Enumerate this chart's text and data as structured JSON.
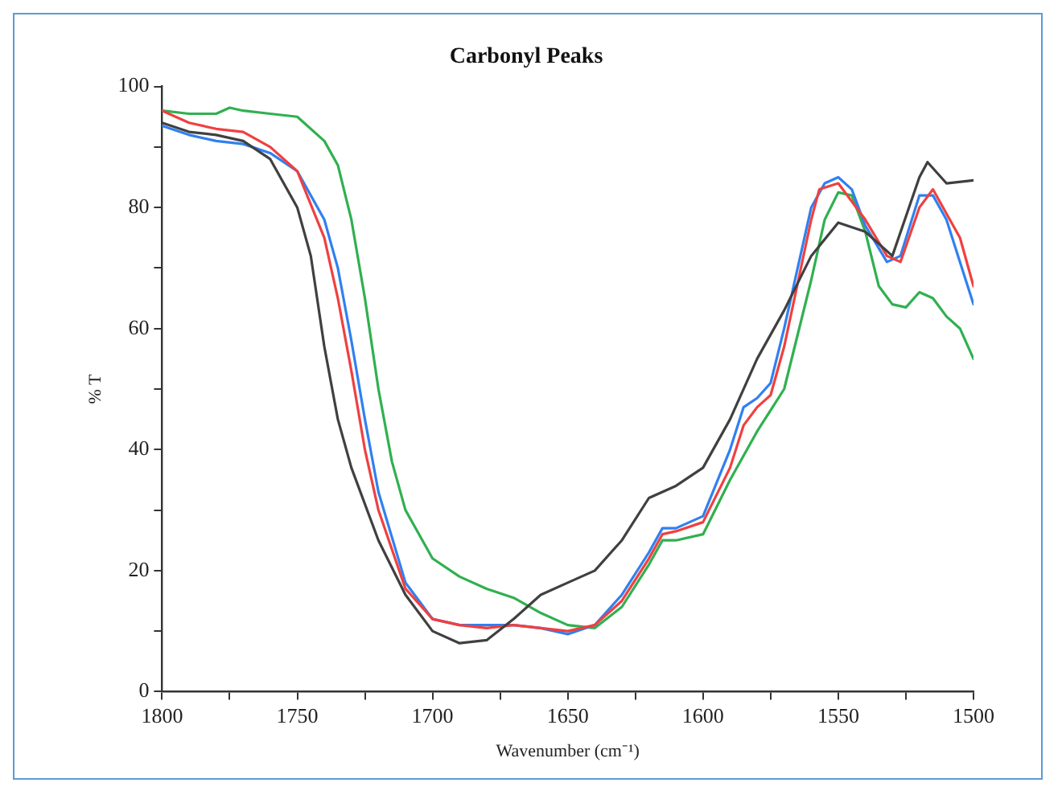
{
  "chart_data": {
    "type": "line",
    "title": "Carbonyl Peaks",
    "xlabel": "Wavenumber (cm⁻¹)",
    "ylabel": "% T",
    "xlim": [
      1800,
      1500
    ],
    "xticks": [
      1800,
      {
        "value": 1775,
        "label": null
      },
      1750,
      {
        "value": 1725,
        "label": null
      },
      1700,
      {
        "value": 1675,
        "label": null
      },
      1650,
      {
        "value": 1625,
        "label": null
      },
      1600,
      {
        "value": 1575,
        "label": null
      },
      1550,
      {
        "value": 1525,
        "label": null
      },
      1500
    ],
    "ylim": [
      0,
      100
    ],
    "yticks": [
      0,
      {
        "value": 10,
        "label": null
      },
      20,
      {
        "value": 30,
        "label": null
      },
      40,
      {
        "value": 50,
        "label": null
      },
      60,
      {
        "value": 70,
        "label": null
      },
      80,
      {
        "value": 90,
        "label": null
      },
      100
    ],
    "grid": false,
    "legend": false,
    "marker": "none",
    "line_style": "solid",
    "series": [
      {
        "color": "#404040",
        "x": [
          1800,
          1790,
          1780,
          1770,
          1760,
          1750,
          1745,
          1740,
          1735,
          1730,
          1720,
          1710,
          1700,
          1690,
          1680,
          1670,
          1660,
          1650,
          1640,
          1630,
          1620,
          1610,
          1600,
          1590,
          1580,
          1570,
          1560,
          1550,
          1540,
          1530,
          1520,
          1517,
          1510,
          1500
        ],
        "values": [
          94,
          92.5,
          92,
          91,
          88,
          80,
          72,
          57,
          45,
          37,
          25,
          16,
          10,
          8,
          8.5,
          12,
          16,
          18,
          20,
          25,
          32,
          34,
          37,
          45,
          55,
          63,
          72,
          77.5,
          76,
          72,
          85,
          87.5,
          84,
          84.5
        ]
      },
      {
        "color": "#f04040",
        "x": [
          1800,
          1790,
          1780,
          1770,
          1760,
          1750,
          1740,
          1735,
          1730,
          1725,
          1720,
          1710,
          1700,
          1690,
          1680,
          1670,
          1660,
          1650,
          1640,
          1630,
          1620,
          1615,
          1610,
          1600,
          1590,
          1585,
          1580,
          1575,
          1570,
          1560,
          1557,
          1550,
          1540,
          1532,
          1527,
          1520,
          1515,
          1510,
          1505,
          1500
        ],
        "values": [
          96,
          94,
          93,
          92.5,
          90,
          86,
          75,
          65,
          53,
          40,
          30,
          17,
          12,
          11,
          10.5,
          11,
          10.5,
          10,
          11,
          15,
          22,
          26,
          26.5,
          28,
          37,
          44,
          47,
          49,
          57,
          78,
          83,
          84,
          78,
          72,
          71,
          80,
          83,
          79,
          75,
          67
        ]
      },
      {
        "color": "#3080f0",
        "x": [
          1800,
          1790,
          1780,
          1770,
          1760,
          1750,
          1740,
          1735,
          1730,
          1725,
          1720,
          1710,
          1700,
          1690,
          1680,
          1670,
          1660,
          1650,
          1640,
          1630,
          1620,
          1615,
          1610,
          1600,
          1590,
          1585,
          1580,
          1575,
          1570,
          1560,
          1555,
          1550,
          1545,
          1540,
          1532,
          1527,
          1520,
          1515,
          1510,
          1505,
          1500
        ],
        "values": [
          93.5,
          92,
          91,
          90.5,
          89,
          86,
          78,
          70,
          58,
          45,
          33,
          18,
          12,
          11,
          11,
          11,
          10.5,
          9.5,
          11,
          16,
          23,
          27,
          27,
          29,
          40,
          47,
          48.5,
          51,
          60,
          80,
          84,
          85,
          83,
          77,
          71,
          72,
          82,
          82,
          78,
          71,
          64
        ]
      },
      {
        "color": "#30b050",
        "x": [
          1800,
          1790,
          1780,
          1775,
          1770,
          1760,
          1750,
          1740,
          1735,
          1730,
          1725,
          1720,
          1715,
          1710,
          1700,
          1690,
          1680,
          1670,
          1660,
          1650,
          1640,
          1630,
          1620,
          1615,
          1610,
          1600,
          1590,
          1580,
          1570,
          1560,
          1555,
          1550,
          1545,
          1540,
          1535,
          1530,
          1525,
          1520,
          1515,
          1510,
          1505,
          1500
        ],
        "values": [
          96,
          95.5,
          95.5,
          96.5,
          96,
          95.5,
          95,
          91,
          87,
          78,
          65,
          50,
          38,
          30,
          22,
          19,
          17,
          15.5,
          13,
          11,
          10.5,
          14,
          21,
          25,
          25,
          26,
          35,
          43,
          50,
          68,
          78,
          82.5,
          82,
          76,
          67,
          64,
          63.5,
          66,
          65,
          62,
          60,
          55
        ]
      }
    ]
  }
}
